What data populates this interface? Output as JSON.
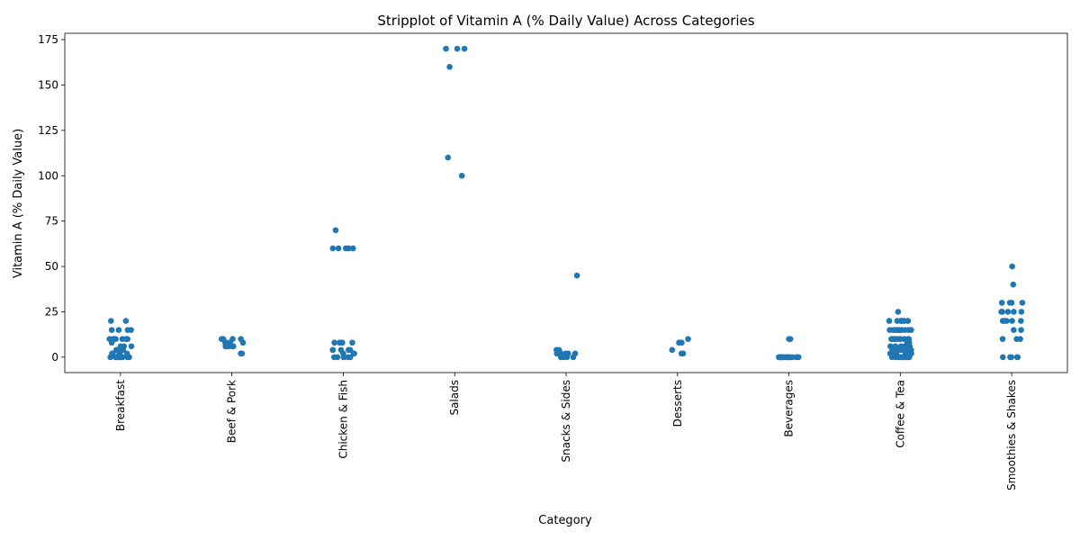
{
  "chart_data": {
    "type": "strip",
    "title": "Stripplot of Vitamin A (% Daily Value) Across Categories",
    "x_label": "Category",
    "y_label": "Vitamin A (% Daily Value)",
    "color": "#1f77b4",
    "categories": [
      "Breakfast",
      "Beef & Pork",
      "Chicken & Fish",
      "Salads",
      "Snacks & Sides",
      "Desserts",
      "Beverages",
      "Coffee & Tea",
      "Smoothies & Shakes"
    ],
    "values": [
      [
        20,
        20,
        15,
        15,
        10,
        10,
        15,
        15,
        10,
        10,
        10,
        10,
        6,
        6,
        8,
        4,
        4,
        4,
        2,
        2,
        2,
        0,
        0,
        0,
        0,
        0,
        0,
        0,
        2,
        4,
        6,
        10,
        10,
        0,
        0,
        0,
        0,
        2,
        4
      ],
      [
        6,
        6,
        6,
        6,
        10,
        10,
        10,
        8,
        8,
        8,
        6,
        6,
        2,
        2,
        8,
        10
      ],
      [
        8,
        8,
        8,
        4,
        4,
        4,
        0,
        0,
        0,
        0,
        0,
        2,
        2,
        4,
        70,
        60,
        60,
        60,
        60,
        60,
        8,
        4,
        2,
        0
      ],
      [
        160,
        170,
        170,
        170,
        110,
        100
      ],
      [
        0,
        0,
        2,
        2,
        4,
        2,
        0,
        4,
        2,
        0,
        45,
        0,
        2
      ],
      [
        2,
        8,
        8,
        10,
        2,
        4,
        2
      ],
      [
        10,
        10,
        0,
        0,
        0,
        0,
        0,
        0,
        0,
        0,
        0,
        0,
        0,
        0,
        0,
        0,
        0,
        0,
        0,
        0,
        0,
        0,
        0,
        0,
        0,
        0
      ],
      [
        20,
        20,
        20,
        20,
        20,
        20,
        20,
        20,
        25,
        15,
        15,
        15,
        15,
        15,
        15,
        15,
        15,
        15,
        15,
        15,
        15,
        10,
        10,
        10,
        10,
        10,
        10,
        10,
        10,
        10,
        10,
        10,
        10,
        8,
        8,
        6,
        6,
        6,
        6,
        6,
        6,
        4,
        4,
        4,
        4,
        4,
        4,
        4,
        4,
        4,
        4,
        4,
        2,
        2,
        2,
        2,
        2,
        0,
        0,
        0,
        0,
        0,
        0,
        0,
        0,
        0,
        0,
        0,
        0,
        15,
        10,
        20,
        15,
        4
      ],
      [
        50,
        40,
        30,
        30,
        30,
        30,
        25,
        25,
        25,
        25,
        25,
        20,
        20,
        20,
        20,
        20,
        15,
        15,
        10,
        10,
        10,
        0,
        0,
        0,
        0,
        0,
        0
      ]
    ],
    "ylim": [
      -8.5,
      178.5
    ],
    "yticks": [
      0,
      25,
      50,
      75,
      100,
      125,
      150,
      175
    ]
  }
}
